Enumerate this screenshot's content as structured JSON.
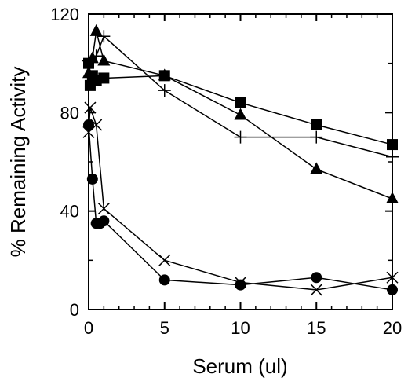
{
  "chart_data": {
    "type": "line",
    "xlabel": "Serum (ul)",
    "ylabel": "% Remaining Activity",
    "xlim": [
      0,
      20
    ],
    "ylim": [
      0,
      120
    ],
    "x_ticks": [
      "0",
      "5",
      "10",
      "15",
      "20"
    ],
    "y_ticks": [
      "0",
      "40",
      "80",
      "120"
    ],
    "grid": false,
    "legend": "none",
    "series": [
      {
        "marker": "square",
        "points": [
          [
            0,
            100
          ],
          [
            0.1,
            91
          ],
          [
            0.25,
            95
          ],
          [
            0.5,
            93
          ],
          [
            1,
            94
          ],
          [
            5,
            95
          ],
          [
            10,
            84
          ],
          [
            15,
            75
          ],
          [
            20,
            67
          ]
        ]
      },
      {
        "marker": "triangle",
        "points": [
          [
            0,
            96
          ],
          [
            0.25,
            102
          ],
          [
            0.5,
            113
          ],
          [
            1,
            101
          ],
          [
            5,
            95
          ],
          [
            10,
            79
          ],
          [
            15,
            57
          ],
          [
            20,
            45
          ]
        ]
      },
      {
        "marker": "plus",
        "points": [
          [
            0,
            101
          ],
          [
            0.5,
            103
          ],
          [
            1,
            111
          ],
          [
            5,
            89
          ],
          [
            10,
            70
          ],
          [
            15,
            70
          ],
          [
            20,
            62
          ]
        ]
      },
      {
        "marker": "cross",
        "points": [
          [
            0,
            72
          ],
          [
            0.1,
            82
          ],
          [
            0.5,
            75
          ],
          [
            1,
            41
          ],
          [
            5,
            20
          ],
          [
            10,
            11
          ],
          [
            15,
            8
          ],
          [
            20,
            13
          ]
        ]
      },
      {
        "marker": "circle",
        "points": [
          [
            0,
            75
          ],
          [
            0.25,
            53
          ],
          [
            0.5,
            35
          ],
          [
            0.75,
            35
          ],
          [
            1,
            36
          ],
          [
            5,
            12
          ],
          [
            10,
            10
          ],
          [
            15,
            13
          ],
          [
            20,
            8
          ]
        ]
      }
    ]
  }
}
